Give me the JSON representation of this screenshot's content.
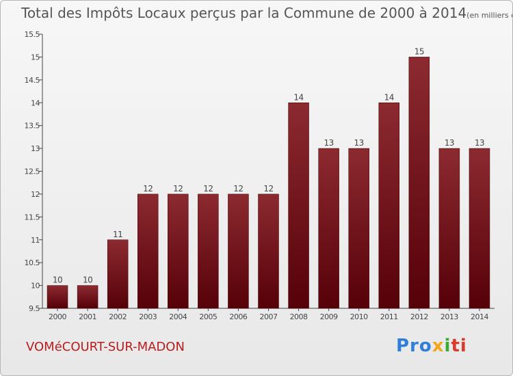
{
  "chart_data": {
    "type": "bar",
    "title": "Total des Impôts Locaux perçus par la Commune de 2000 à 2014",
    "subtitle": "(en milliers d'€)",
    "categories": [
      "2000",
      "2001",
      "2002",
      "2003",
      "2004",
      "2005",
      "2006",
      "2007",
      "2008",
      "2009",
      "2010",
      "2011",
      "2012",
      "2013",
      "2014"
    ],
    "values": [
      10,
      10,
      11,
      12,
      12,
      12,
      12,
      12,
      14,
      13,
      13,
      14,
      15,
      13,
      13
    ],
    "data_labels": [
      "10",
      "10",
      "11",
      "12",
      "12",
      "12",
      "12",
      "12",
      "14",
      "13",
      "13",
      "14",
      "15",
      "13",
      "13"
    ],
    "ylim": [
      9.5,
      15.5
    ],
    "yticks": [
      9.5,
      10,
      10.5,
      11,
      11.5,
      12,
      12.5,
      13,
      13.5,
      14,
      14.5,
      15,
      15.5
    ],
    "ytick_labels": [
      "9.5",
      "10",
      "10.5",
      "11",
      "11.5",
      "12",
      "12.5",
      "13",
      "13.5",
      "14",
      "14.5",
      "15",
      "15.5"
    ],
    "bar_color": "#7a1a1f",
    "grid": false,
    "legend": "none"
  },
  "footer": {
    "commune": "VOMéCOURT-SUR-MADON",
    "logo_parts": [
      "Pro",
      "x",
      "i",
      "ti"
    ]
  },
  "colors": {
    "commune_text": "#b81d1d",
    "title_text": "#555555"
  }
}
